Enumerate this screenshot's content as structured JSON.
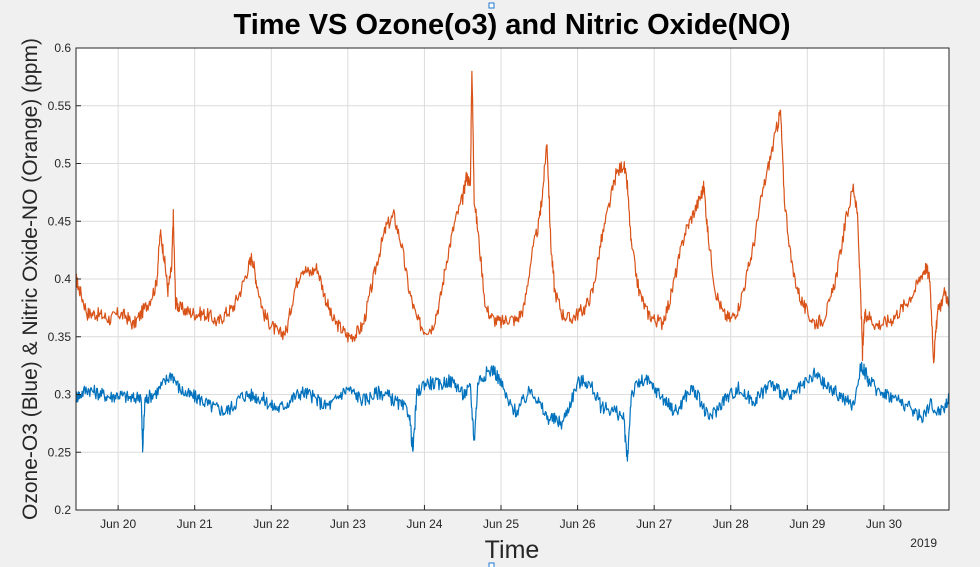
{
  "chart_data": {
    "type": "line",
    "title": "Time VS Ozone(o3) and Nitric Oxide(NO)",
    "xlabel": "Time",
    "ylabel": "Ozone-O3 (Blue) & Nitric Oxide-NO (Orange) (ppm)",
    "x_tick_labels": [
      "Jun 20",
      "Jun 21",
      "Jun 22",
      "Jun 23",
      "Jun 24",
      "Jun 25",
      "Jun 26",
      "Jun 27",
      "Jun 28",
      "Jun 29",
      "Jun 30"
    ],
    "x_year_label": "2019",
    "xlim": [
      19.45,
      30.85
    ],
    "ylim": [
      0.2,
      0.6
    ],
    "y_ticks": [
      0.2,
      0.25,
      0.3,
      0.35,
      0.4,
      0.45,
      0.5,
      0.55,
      0.6
    ],
    "y_tick_labels": [
      "0.2",
      "0.25",
      "0.3",
      "0.35",
      "0.4",
      "0.45",
      "0.5",
      "0.55",
      "0.6"
    ],
    "grid": true,
    "colors": {
      "ozone": "#0072bd",
      "nitric_oxide": "#d95319"
    },
    "series": [
      {
        "key": "nitric_oxide",
        "color": "#d95319",
        "x": [
          19.45,
          19.5,
          19.6,
          19.7,
          19.8,
          19.9,
          20.0,
          20.1,
          20.2,
          20.3,
          20.4,
          20.5,
          20.55,
          20.6,
          20.65,
          20.7,
          20.72,
          20.75,
          20.8,
          20.9,
          21.0,
          21.1,
          21.2,
          21.3,
          21.4,
          21.5,
          21.6,
          21.7,
          21.75,
          21.8,
          21.9,
          22.0,
          22.1,
          22.2,
          22.3,
          22.4,
          22.5,
          22.6,
          22.7,
          22.8,
          22.9,
          23.0,
          23.1,
          23.2,
          23.3,
          23.4,
          23.5,
          23.6,
          23.7,
          23.8,
          23.9,
          24.0,
          24.1,
          24.2,
          24.3,
          24.4,
          24.5,
          24.55,
          24.6,
          24.62,
          24.65,
          24.7,
          24.8,
          24.9,
          25.0,
          25.1,
          25.2,
          25.3,
          25.4,
          25.5,
          25.55,
          25.6,
          25.65,
          25.7,
          25.8,
          25.9,
          26.0,
          26.1,
          26.2,
          26.3,
          26.4,
          26.5,
          26.6,
          26.65,
          26.7,
          26.8,
          26.9,
          27.0,
          27.1,
          27.2,
          27.3,
          27.4,
          27.5,
          27.6,
          27.65,
          27.7,
          27.8,
          27.9,
          28.0,
          28.1,
          28.2,
          28.3,
          28.4,
          28.5,
          28.6,
          28.65,
          28.7,
          28.8,
          28.9,
          29.0,
          29.1,
          29.2,
          29.3,
          29.4,
          29.5,
          29.6,
          29.65,
          29.7,
          29.72,
          29.75,
          29.8,
          29.9,
          30.0,
          30.1,
          30.2,
          30.3,
          30.4,
          30.5,
          30.55,
          30.6,
          30.65,
          30.7,
          30.8,
          30.85
        ],
        "y": [
          0.4,
          0.39,
          0.37,
          0.37,
          0.368,
          0.365,
          0.37,
          0.368,
          0.36,
          0.37,
          0.38,
          0.395,
          0.44,
          0.42,
          0.39,
          0.41,
          0.455,
          0.38,
          0.375,
          0.372,
          0.37,
          0.37,
          0.368,
          0.362,
          0.37,
          0.375,
          0.39,
          0.41,
          0.42,
          0.4,
          0.37,
          0.36,
          0.352,
          0.355,
          0.39,
          0.41,
          0.405,
          0.41,
          0.385,
          0.365,
          0.358,
          0.35,
          0.352,
          0.36,
          0.39,
          0.42,
          0.445,
          0.455,
          0.43,
          0.39,
          0.365,
          0.356,
          0.358,
          0.38,
          0.42,
          0.45,
          0.47,
          0.49,
          0.48,
          0.585,
          0.47,
          0.44,
          0.375,
          0.365,
          0.362,
          0.366,
          0.364,
          0.375,
          0.42,
          0.45,
          0.48,
          0.52,
          0.43,
          0.39,
          0.37,
          0.365,
          0.37,
          0.375,
          0.39,
          0.43,
          0.46,
          0.49,
          0.5,
          0.48,
          0.43,
          0.39,
          0.372,
          0.365,
          0.362,
          0.38,
          0.41,
          0.44,
          0.455,
          0.47,
          0.48,
          0.44,
          0.39,
          0.37,
          0.365,
          0.375,
          0.4,
          0.43,
          0.47,
          0.5,
          0.53,
          0.545,
          0.47,
          0.41,
          0.385,
          0.37,
          0.362,
          0.365,
          0.38,
          0.41,
          0.45,
          0.48,
          0.46,
          0.38,
          0.335,
          0.37,
          0.368,
          0.36,
          0.362,
          0.365,
          0.372,
          0.38,
          0.39,
          0.405,
          0.41,
          0.4,
          0.33,
          0.37,
          0.39,
          0.375
        ]
      },
      {
        "key": "ozone",
        "color": "#0072bd",
        "x": [
          19.45,
          19.5,
          19.6,
          19.7,
          19.8,
          19.9,
          20.0,
          20.1,
          20.2,
          20.3,
          20.32,
          20.35,
          20.4,
          20.5,
          20.6,
          20.7,
          20.8,
          20.9,
          21.0,
          21.1,
          21.2,
          21.3,
          21.4,
          21.5,
          21.6,
          21.7,
          21.8,
          21.9,
          22.0,
          22.1,
          22.2,
          22.3,
          22.4,
          22.5,
          22.6,
          22.7,
          22.8,
          22.9,
          23.0,
          23.1,
          23.2,
          23.3,
          23.4,
          23.5,
          23.6,
          23.7,
          23.8,
          23.85,
          23.9,
          24.0,
          24.1,
          24.2,
          24.3,
          24.4,
          24.5,
          24.6,
          24.65,
          24.7,
          24.8,
          24.9,
          25.0,
          25.1,
          25.2,
          25.3,
          25.4,
          25.5,
          25.6,
          25.7,
          25.8,
          25.9,
          26.0,
          26.1,
          26.2,
          26.3,
          26.4,
          26.5,
          26.6,
          26.65,
          26.7,
          26.8,
          26.9,
          27.0,
          27.1,
          27.2,
          27.3,
          27.4,
          27.5,
          27.6,
          27.7,
          27.8,
          27.9,
          28.0,
          28.1,
          28.2,
          28.3,
          28.4,
          28.5,
          28.6,
          28.7,
          28.8,
          28.9,
          29.0,
          29.1,
          29.2,
          29.3,
          29.4,
          29.5,
          29.6,
          29.7,
          29.75,
          29.8,
          29.9,
          30.0,
          30.1,
          30.2,
          30.3,
          30.4,
          30.5,
          30.6,
          30.7,
          30.8,
          30.85
        ],
        "y": [
          0.298,
          0.3,
          0.305,
          0.302,
          0.3,
          0.298,
          0.3,
          0.298,
          0.296,
          0.3,
          0.252,
          0.295,
          0.298,
          0.302,
          0.31,
          0.318,
          0.305,
          0.3,
          0.298,
          0.295,
          0.29,
          0.288,
          0.285,
          0.29,
          0.298,
          0.3,
          0.298,
          0.296,
          0.29,
          0.288,
          0.292,
          0.298,
          0.302,
          0.3,
          0.295,
          0.29,
          0.292,
          0.3,
          0.305,
          0.3,
          0.295,
          0.298,
          0.302,
          0.3,
          0.295,
          0.29,
          0.285,
          0.25,
          0.3,
          0.31,
          0.31,
          0.308,
          0.312,
          0.31,
          0.3,
          0.305,
          0.26,
          0.312,
          0.318,
          0.322,
          0.31,
          0.292,
          0.285,
          0.295,
          0.305,
          0.292,
          0.28,
          0.278,
          0.275,
          0.292,
          0.31,
          0.312,
          0.305,
          0.29,
          0.288,
          0.285,
          0.28,
          0.242,
          0.3,
          0.31,
          0.312,
          0.305,
          0.298,
          0.29,
          0.285,
          0.298,
          0.305,
          0.295,
          0.28,
          0.285,
          0.295,
          0.3,
          0.305,
          0.298,
          0.295,
          0.3,
          0.31,
          0.305,
          0.3,
          0.298,
          0.305,
          0.31,
          0.318,
          0.31,
          0.305,
          0.3,
          0.295,
          0.29,
          0.325,
          0.32,
          0.312,
          0.305,
          0.302,
          0.298,
          0.295,
          0.29,
          0.285,
          0.28,
          0.292,
          0.285,
          0.29,
          0.298
        ]
      }
    ]
  }
}
